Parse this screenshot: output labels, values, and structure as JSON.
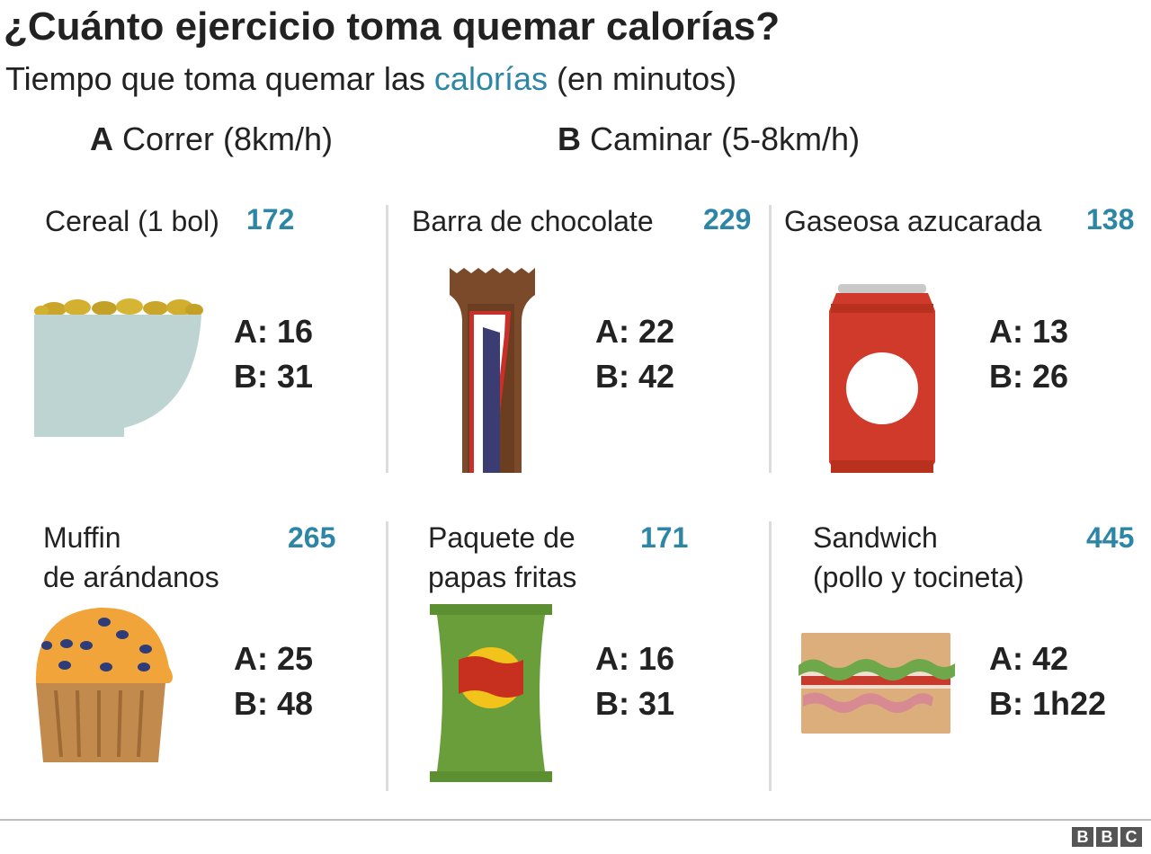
{
  "title": "¿Cuánto ejercicio toma quemar calorías?",
  "subtitle": {
    "before": "Tiempo que toma quemar las",
    "highlight": "calorías",
    "after": "(en minutos)"
  },
  "legend": {
    "a": {
      "letter": "A",
      "label": "Correr (8km/h)"
    },
    "b": {
      "letter": "B",
      "label": "Caminar (5-8km/h)"
    }
  },
  "items": [
    {
      "name": "Cereal (1 bol)",
      "calories": "172",
      "a": "A: 16",
      "b": "B: 31",
      "icon": "cereal-bowl-icon"
    },
    {
      "name": "Barra de chocolate",
      "calories": "229",
      "a": "A: 22",
      "b": "B: 42",
      "icon": "chocolate-bar-icon"
    },
    {
      "name": "Gaseosa azucarada",
      "calories": "138",
      "a": "A: 13",
      "b": "B: 26",
      "icon": "soda-can-icon"
    },
    {
      "name_line1": "Muffin",
      "name_line2": "de arándanos",
      "calories": "265",
      "a": "A: 25",
      "b": "B: 48",
      "icon": "muffin-icon"
    },
    {
      "name_line1": "Paquete de",
      "name_line2": "papas fritas",
      "calories": "171",
      "a": "A: 16",
      "b": "B: 31",
      "icon": "chips-bag-icon"
    },
    {
      "name_line1": "Sandwich",
      "name_line2": "(pollo y tocineta)",
      "calories": "445",
      "a": "A: 42",
      "b": "B: 1h22",
      "icon": "sandwich-icon"
    }
  ],
  "footer": {
    "logo_letters": [
      "B",
      "B",
      "C"
    ]
  },
  "colors": {
    "accent": "#2e86a6",
    "divider": "#dcdcdc"
  }
}
